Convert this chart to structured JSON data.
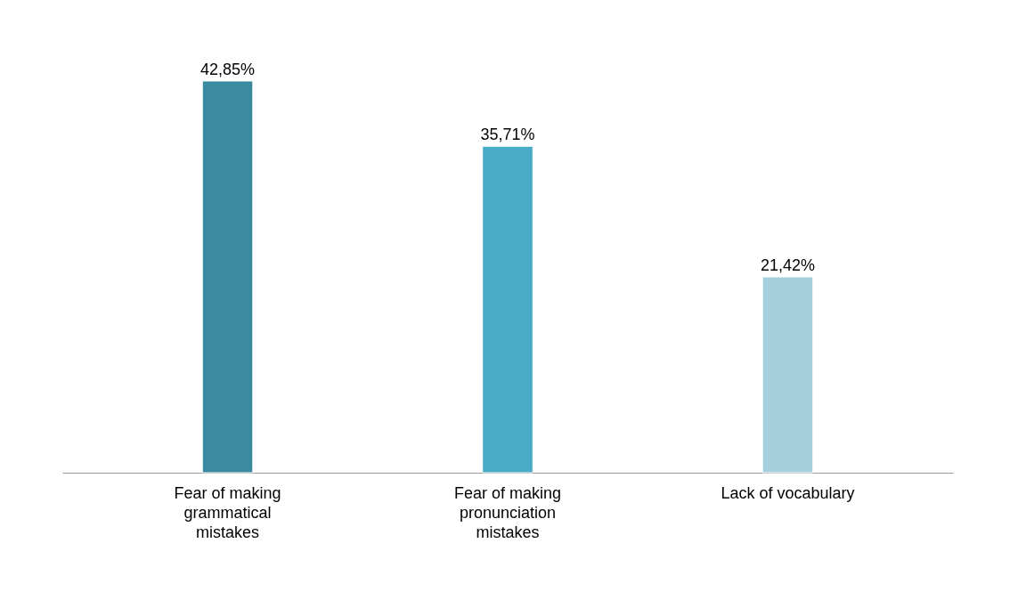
{
  "chart_data": {
    "type": "bar",
    "categories": [
      "Fear of making grammatical mistakes",
      "Fear of making pronunciation mistakes",
      "Lack of vocabulary"
    ],
    "values": [
      42.85,
      35.71,
      21.42
    ],
    "colors": [
      "#3a8ba0",
      "#4aabc6",
      "#a6cfdd"
    ],
    "value_labels": [
      "42,85%",
      "35,71%",
      "21,42%"
    ]
  }
}
